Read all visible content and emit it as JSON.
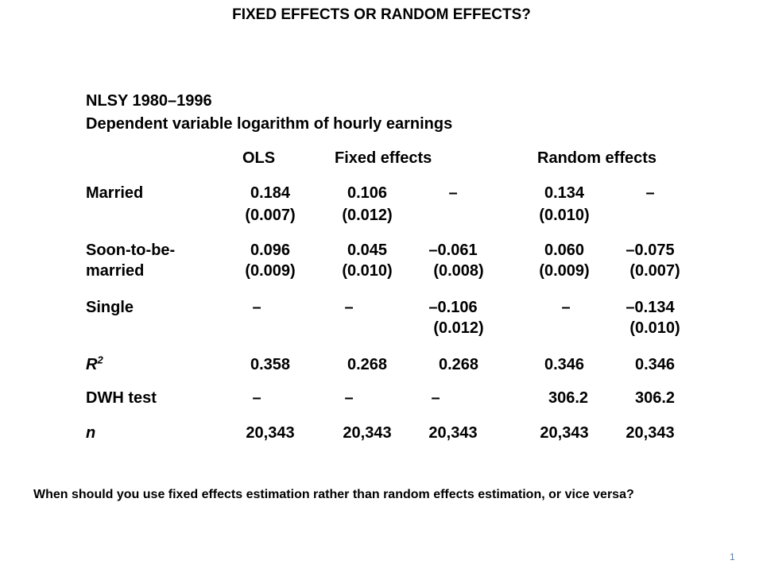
{
  "title": "FIXED EFFECTS OR RANDOM EFFECTS?",
  "source": "NLSY 1980–1996",
  "dependent_variable": "Dependent variable logarithm of hourly earnings",
  "column_headers": {
    "ols": "OLS",
    "fixed": "Fixed effects",
    "random": "Random effects"
  },
  "rows": {
    "married": {
      "label": "Married",
      "ols": "0.184",
      "ols_se": "(0.007)",
      "fe1": "0.106",
      "fe1_se": "(0.012)",
      "fe2": "–",
      "fe2_se": "",
      "re1": "0.134",
      "re1_se": "(0.010)",
      "re2": "–",
      "re2_se": ""
    },
    "soon": {
      "label_line1": "Soon-to-be-",
      "label_line2": "married",
      "ols": "0.096",
      "ols_se": "(0.009)",
      "fe1": "0.045",
      "fe1_se": "(0.010)",
      "fe2": "–0.061",
      "fe2_se": "(0.008)",
      "re1": "0.060",
      "re1_se": "(0.009)",
      "re2": "–0.075",
      "re2_se": "(0.007)"
    },
    "single": {
      "label": "Single",
      "ols": "–",
      "ols_se": "",
      "fe1": "–",
      "fe1_se": "",
      "fe2": "–0.106",
      "fe2_se": "(0.012)",
      "re1": "–",
      "re1_se": "",
      "re2": "–0.134",
      "re2_se": "(0.010)"
    },
    "r2": {
      "label_main": "R",
      "label_sup": "2",
      "ols": "0.358",
      "fe1": "0.268",
      "fe2": "0.268",
      "re1": "0.346",
      "re2": "0.346"
    },
    "dwh": {
      "label": "DWH test",
      "ols": "–",
      "fe1": "–",
      "fe2": "–",
      "re1": "306.2",
      "re2": "306.2"
    },
    "n": {
      "label": "n",
      "ols": "20,343",
      "fe1": "20,343",
      "fe2": "20,343",
      "re1": "20,343",
      "re2": "20,343"
    }
  },
  "question": "When should you use fixed effects estimation rather than random effects estimation, or vice versa?",
  "page_number": "1"
}
